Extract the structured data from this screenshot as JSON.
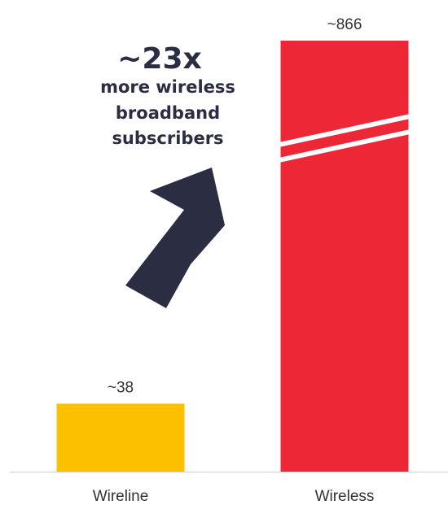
{
  "chart_data": {
    "type": "bar",
    "categories": [
      "Wireline",
      "Wireless"
    ],
    "values": [
      38,
      866
    ],
    "value_labels": [
      "~38",
      "~866"
    ],
    "axis_break": "Wireless",
    "colors": [
      "#fcc000",
      "#ee2737"
    ],
    "grid": false,
    "annotation": {
      "multiplier": "~23x",
      "lines": [
        "more wireless",
        "broadband",
        "subscribers"
      ],
      "color": "#2b2d42",
      "icon": "up-right-arrow-icon"
    }
  }
}
